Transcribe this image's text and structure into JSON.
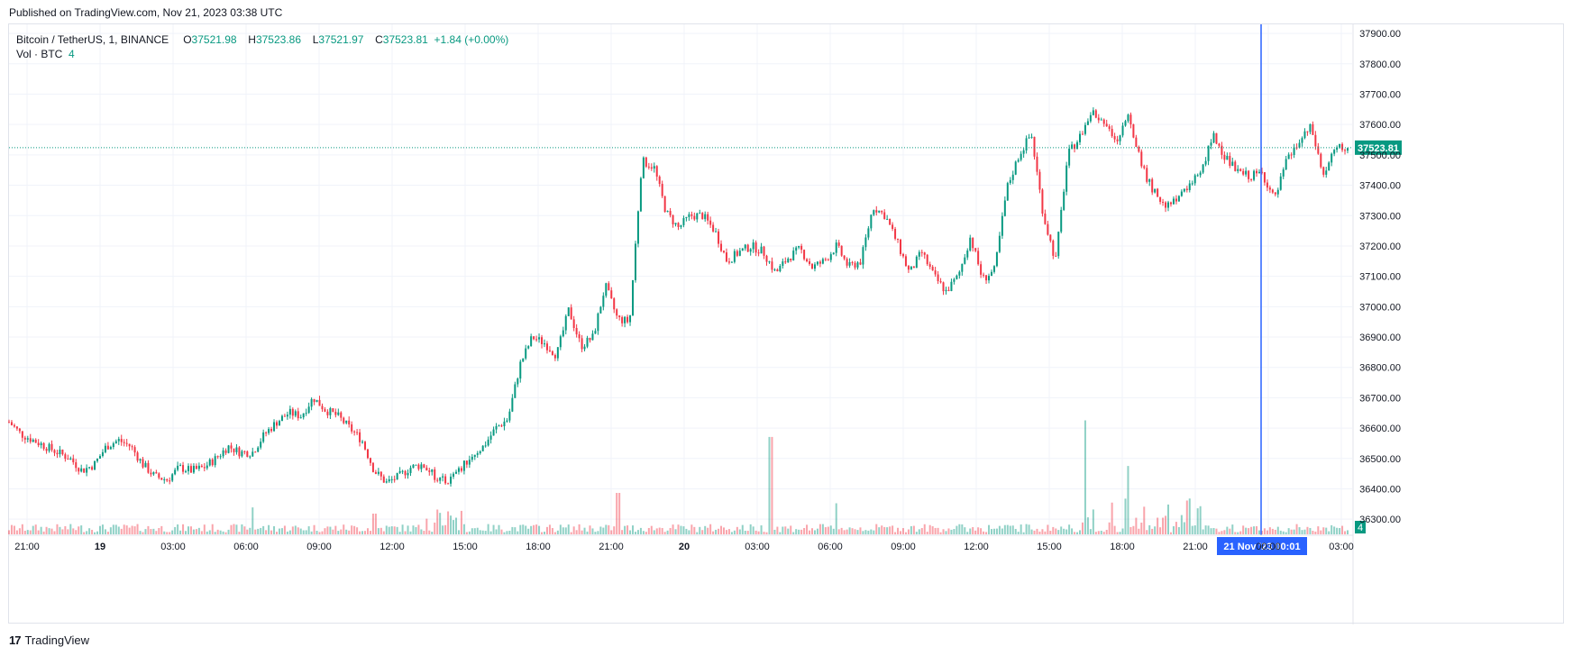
{
  "header": {
    "published": "Published on TradingView.com, Nov 21, 2023 03:38 UTC"
  },
  "legend": {
    "symbol": "Bitcoin / TetherUS, 1, BINANCE",
    "o_key": "O",
    "o": "37521.98",
    "h_key": "H",
    "h": "37523.86",
    "l_key": "L",
    "l": "37521.97",
    "c_key": "C",
    "c": "37523.81",
    "change": "+1.84 (+0.00%)",
    "vol_label": "Vol · BTC",
    "vol": "4"
  },
  "footer": {
    "brand": "TradingView",
    "logo": "17"
  },
  "colors": {
    "up": "#089981",
    "down": "#f23645",
    "crosshair": "#2962ff",
    "grid": "#f0f3fa",
    "axis_text": "#131722"
  },
  "chart_data": {
    "type": "candlestick",
    "symbol": "BTCUSDT",
    "interval": "1",
    "ylim": [
      36250,
      37930
    ],
    "y_ticks": [
      "37900.00",
      "37800.00",
      "37700.00",
      "37600.00",
      "37500.00",
      "37400.00",
      "37300.00",
      "37200.00",
      "37100.00",
      "37000.00",
      "36900.00",
      "36800.00",
      "36700.00",
      "36600.00",
      "36500.00",
      "36400.00",
      "36300.00"
    ],
    "x_ticks": [
      {
        "label": "21:00",
        "bold": false
      },
      {
        "label": "19",
        "bold": true
      },
      {
        "label": "03:00",
        "bold": false
      },
      {
        "label": "06:00",
        "bold": false
      },
      {
        "label": "09:00",
        "bold": false
      },
      {
        "label": "12:00",
        "bold": false
      },
      {
        "label": "15:00",
        "bold": false
      },
      {
        "label": "18:00",
        "bold": false
      },
      {
        "label": "21:00",
        "bold": false
      },
      {
        "label": "20",
        "bold": true
      },
      {
        "label": "03:00",
        "bold": false
      },
      {
        "label": "06:00",
        "bold": false
      },
      {
        "label": "09:00",
        "bold": false
      },
      {
        "label": "12:00",
        "bold": false
      },
      {
        "label": "15:00",
        "bold": false
      },
      {
        "label": "18:00",
        "bold": false
      },
      {
        "label": "21:00",
        "bold": false
      },
      {
        "label": "00:00",
        "bold": false
      },
      {
        "label": "03:00",
        "bold": false
      }
    ],
    "price_series": {
      "x_hours": [
        0,
        0.5,
        1,
        1.5,
        2,
        2.5,
        3,
        3.5,
        4,
        4.5,
        5,
        5.5,
        6,
        6.5,
        7,
        7.5,
        8,
        8.5,
        9,
        9.5,
        10,
        10.5,
        11,
        11.5,
        12,
        12.5,
        13,
        13.5,
        14,
        14.5,
        15,
        15.5,
        16,
        16.5,
        17,
        17.5,
        18,
        18.5,
        19,
        19.5,
        20,
        20.5,
        21,
        21.5,
        22,
        22.5,
        23,
        23.5,
        24,
        24.5,
        25,
        25.5,
        26,
        26.5,
        27,
        27.5,
        28,
        28.5,
        29,
        29.5,
        30,
        30.5,
        31,
        31.5,
        32,
        32.5,
        33,
        33.5,
        34,
        34.5,
        35,
        35.5,
        36,
        36.5,
        37,
        37.5,
        38,
        38.5,
        39,
        39.5,
        40,
        40.5,
        41,
        41.5,
        42,
        42.5,
        43,
        43.5,
        44,
        44.5,
        45,
        45.5,
        46,
        46.5,
        47,
        47.5,
        48,
        48.5,
        49,
        49.5,
        50,
        50.5,
        51,
        51.5,
        52,
        52.5,
        53,
        53.5,
        54,
        54.5,
        55
      ],
      "close": [
        36620,
        36580,
        36560,
        36540,
        36520,
        36500,
        36460,
        36480,
        36540,
        36560,
        36540,
        36480,
        36440,
        36430,
        36470,
        36460,
        36470,
        36500,
        36540,
        36520,
        36520,
        36580,
        36620,
        36650,
        36640,
        36700,
        36660,
        36640,
        36600,
        36560,
        36460,
        36420,
        36440,
        36470,
        36480,
        36440,
        36420,
        36460,
        36510,
        36540,
        36600,
        36630,
        36810,
        36900,
        36880,
        36840,
        36990,
        36870,
        36900,
        37070,
        36960,
        36950,
        37480,
        37460,
        37310,
        37260,
        37300,
        37300,
        37250,
        37150,
        37180,
        37200,
        37180,
        37110,
        37160,
        37190,
        37130,
        37150,
        37200,
        37130,
        37150,
        37330,
        37300,
        37210,
        37110,
        37180,
        37100,
        37050,
        37100,
        37230,
        37090,
        37120,
        37390,
        37500,
        37570,
        37300,
        37150,
        37500,
        37560,
        37640,
        37610,
        37530,
        37640,
        37470,
        37380,
        37340,
        37350,
        37400,
        37460,
        37560,
        37490,
        37440,
        37430,
        37440,
        37350,
        37480,
        37540,
        37590,
        37430,
        37520,
        37524
      ]
    },
    "volume": {
      "peaks": [
        {
          "x_hours": 10,
          "value": 13
        },
        {
          "x_hours": 15,
          "value": 10
        },
        {
          "x_hours": 25,
          "value": 20
        },
        {
          "x_hours": 31.3,
          "value": 47
        },
        {
          "x_hours": 34,
          "value": 15
        },
        {
          "x_hours": 44.3,
          "value": 55
        },
        {
          "x_hours": 46,
          "value": 33
        },
        {
          "x_hours": 47.6,
          "value": 33
        },
        {
          "x_hours": 48.5,
          "value": 20
        }
      ]
    },
    "last_price": "37523.81",
    "last_volume": "4",
    "crosshair_label": "21 Nov '23   00:01",
    "crosshair_x_hours": 47.1,
    "last_bar_x_hours": 55
  }
}
